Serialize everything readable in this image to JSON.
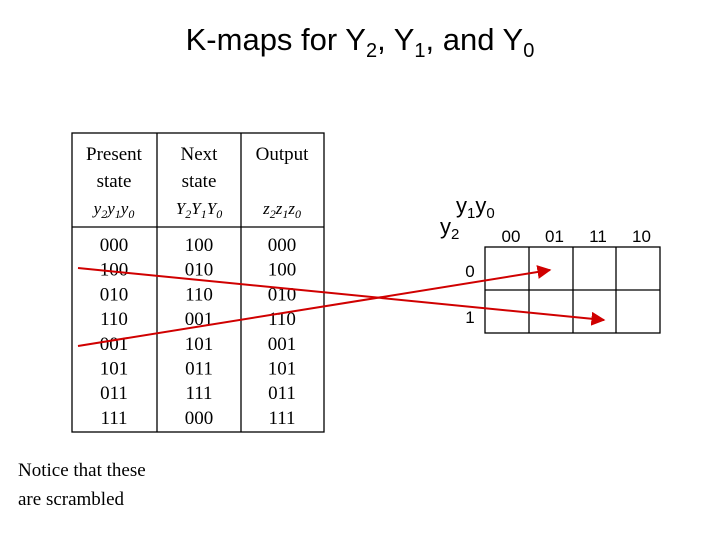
{
  "title": [
    "K-maps for Y",
    "2",
    ", Y",
    "1",
    ", and Y",
    "0"
  ],
  "table": {
    "headers": [
      {
        "lines": [
          "Present",
          "state"
        ],
        "vars": [
          "y",
          "2",
          "y",
          "1",
          "y",
          "0"
        ]
      },
      {
        "lines": [
          "Next",
          "state"
        ],
        "vars": [
          "Y",
          "2",
          "Y",
          "1",
          "Y",
          "0"
        ]
      },
      {
        "lines": [
          "Output"
        ],
        "vars": [
          "z",
          "2",
          "z",
          "1",
          "z",
          "0"
        ]
      }
    ],
    "rows": [
      [
        "000",
        "100",
        "000"
      ],
      [
        "100",
        "010",
        "100"
      ],
      [
        "010",
        "110",
        "010"
      ],
      [
        "110",
        "001",
        "110"
      ],
      [
        "001",
        "101",
        "001"
      ],
      [
        "101",
        "011",
        "101"
      ],
      [
        "011",
        "111",
        "011"
      ],
      [
        "111",
        "000",
        "111"
      ]
    ]
  },
  "note": [
    "Notice that these",
    "are scrambled"
  ],
  "kmap": {
    "col_var": [
      "y",
      "1",
      "y",
      "0"
    ],
    "row_var": [
      "y",
      "2"
    ],
    "columns": [
      "00",
      "01",
      "11",
      "10"
    ],
    "rows": [
      "0",
      "1"
    ]
  }
}
